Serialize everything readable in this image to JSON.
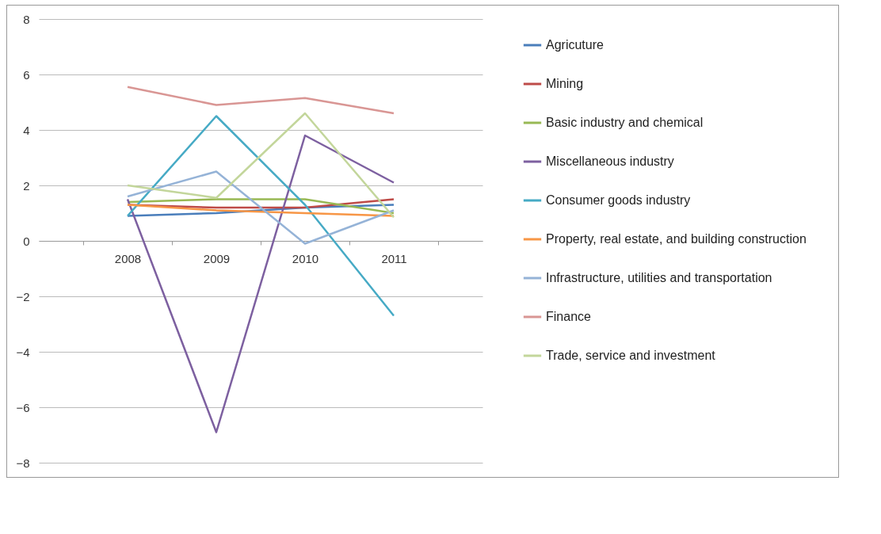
{
  "chart_data": {
    "type": "line",
    "categories": [
      "2008",
      "2009",
      "2010",
      "2011"
    ],
    "ylim": [
      -8,
      8
    ],
    "yticks": [
      -8,
      -6,
      -4,
      -2,
      0,
      2,
      4,
      6,
      8
    ],
    "grid": "y",
    "legend": "right",
    "marker": "none",
    "line_style": "solid",
    "series": [
      {
        "name": "Agricuture",
        "color": "#4a7ebb",
        "values": [
          0.9,
          1.0,
          1.2,
          1.3
        ]
      },
      {
        "name": "Mining",
        "color": "#be4b48",
        "values": [
          1.3,
          1.2,
          1.2,
          1.5
        ]
      },
      {
        "name": "Basic industry and chemical",
        "color": "#98b954",
        "values": [
          1.4,
          1.5,
          1.5,
          1.0
        ]
      },
      {
        "name": "Miscellaneous industry",
        "color": "#7d60a0",
        "values": [
          1.5,
          -6.9,
          3.8,
          2.1
        ]
      },
      {
        "name": "Consumer goods industry",
        "color": "#46aac5",
        "values": [
          0.9,
          4.5,
          1.3,
          -2.7
        ]
      },
      {
        "name": "Property, real estate, and building construction",
        "color": "#f79646",
        "values": [
          1.3,
          1.1,
          1.0,
          0.9
        ]
      },
      {
        "name": "Infrastructure, utilities and transportation",
        "color": "#95b3d7",
        "values": [
          1.6,
          2.5,
          -0.1,
          1.1
        ]
      },
      {
        "name": "Finance",
        "color": "#d99694",
        "values": [
          5.55,
          4.9,
          5.15,
          4.6
        ]
      },
      {
        "name": "Trade, service and investment",
        "color": "#c3d69b",
        "values": [
          2.0,
          1.55,
          4.6,
          0.85
        ]
      }
    ]
  }
}
